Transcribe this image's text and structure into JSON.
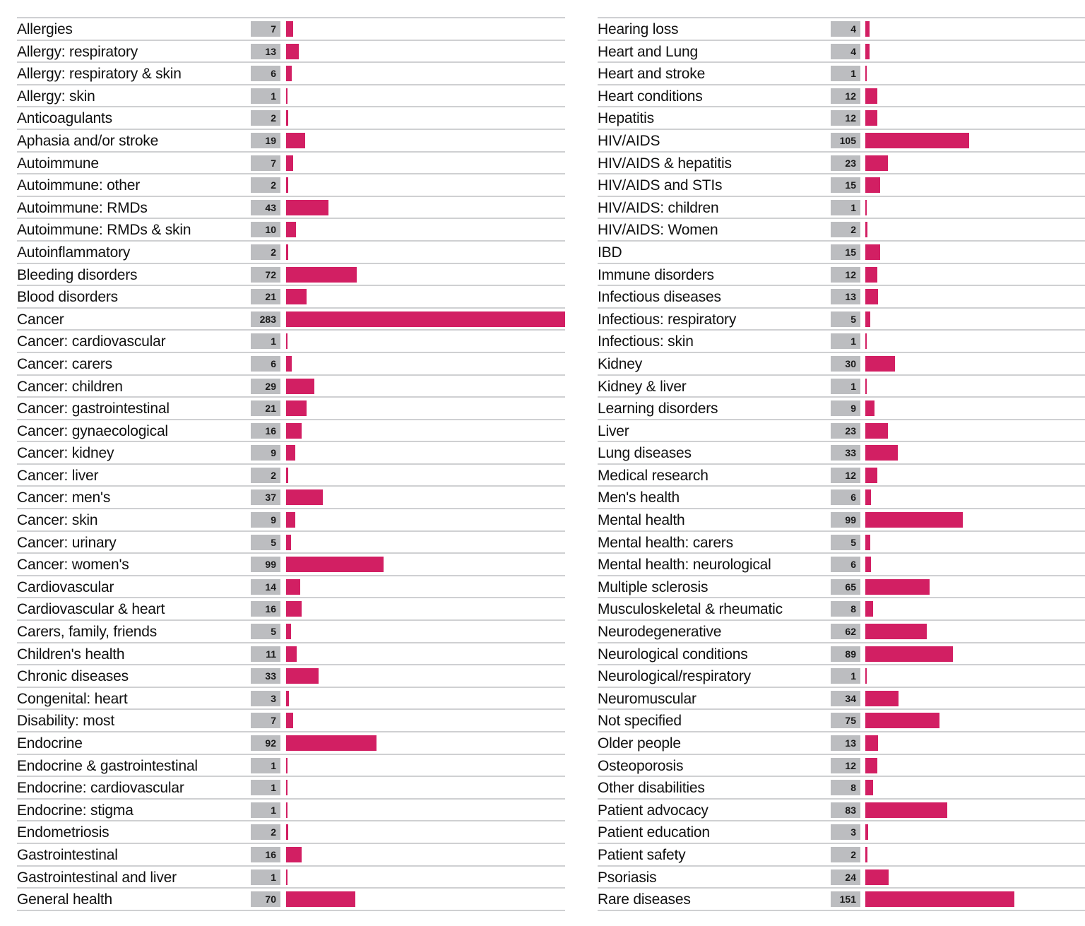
{
  "chart_data": {
    "type": "bar",
    "orientation": "horizontal",
    "title": "",
    "xlabel": "",
    "ylabel": "",
    "xlim": [
      0,
      283
    ],
    "grid": false,
    "bar_color": "#d21f63",
    "value_box_color": "#bcbdc0",
    "panels": [
      {
        "categories": [
          "Allergies",
          "Allergy: respiratory",
          "Allergy: respiratory & skin",
          "Allergy: skin",
          "Anticoagulants",
          "Aphasia and/or stroke",
          "Autoimmune",
          "Autoimmune: other",
          "Autoimmune: RMDs",
          "Autoimmune: RMDs & skin",
          "Autoinflammatory",
          "Bleeding disorders",
          "Blood disorders",
          "Cancer",
          "Cancer: cardiovascular",
          "Cancer: carers",
          "Cancer: children",
          "Cancer: gastrointestinal",
          "Cancer: gynaecological",
          "Cancer: kidney",
          "Cancer: liver",
          "Cancer: men's",
          "Cancer: skin",
          "Cancer: urinary",
          "Cancer: women's",
          "Cardiovascular",
          "Cardiovascular & heart",
          "Carers, family, friends",
          "Children's health",
          "Chronic diseases",
          "Congenital: heart",
          "Disability: most",
          "Endocrine",
          "Endocrine & gastrointestinal",
          "Endocrine: cardiovascular",
          "Endocrine: stigma",
          "Endometriosis",
          "Gastrointestinal",
          "Gastrointestinal and liver",
          "General health"
        ],
        "values": [
          7,
          13,
          6,
          1,
          2,
          19,
          7,
          2,
          43,
          10,
          2,
          72,
          21,
          283,
          1,
          6,
          29,
          21,
          16,
          9,
          2,
          37,
          9,
          5,
          99,
          14,
          16,
          5,
          11,
          33,
          3,
          7,
          92,
          1,
          1,
          1,
          2,
          16,
          1,
          70
        ]
      },
      {
        "categories": [
          "Hearing loss",
          "Heart and Lung",
          "Heart and stroke",
          "Heart conditions",
          "Hepatitis",
          "HIV/AIDS",
          "HIV/AIDS & hepatitis",
          "HIV/AIDS and STIs",
          "HIV/AIDS: children",
          "HIV/AIDS: Women",
          "IBD",
          "Immune disorders",
          "Infectious diseases",
          "Infectious: respiratory",
          "Infectious: skin",
          "Kidney",
          "Kidney & liver",
          "Learning disorders",
          "Liver",
          "Lung diseases",
          "Medical research",
          "Men's health",
          "Mental health",
          "Mental health: carers",
          "Mental health: neurological",
          "Multiple sclerosis",
          "Musculoskeletal & rheumatic",
          "Neurodegenerative",
          "Neurological conditions",
          "Neurological/respiratory",
          "Neuromuscular",
          "Not specified",
          "Older people",
          "Osteoporosis",
          "Other disabilities",
          "Patient advocacy",
          "Patient education",
          "Patient safety",
          "Psoriasis",
          "Rare diseases"
        ],
        "values": [
          4,
          4,
          1,
          12,
          12,
          105,
          23,
          15,
          1,
          2,
          15,
          12,
          13,
          5,
          1,
          30,
          1,
          9,
          23,
          33,
          12,
          6,
          99,
          5,
          6,
          65,
          8,
          62,
          89,
          1,
          34,
          75,
          13,
          12,
          8,
          83,
          3,
          2,
          24,
          151
        ]
      }
    ]
  }
}
